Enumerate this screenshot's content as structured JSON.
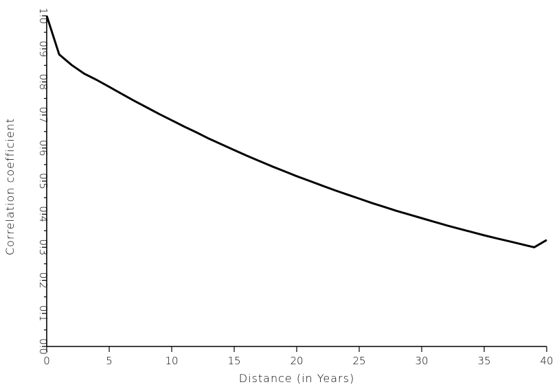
{
  "chart_data": {
    "type": "line",
    "title": "",
    "xlabel": "Distance (in Years)",
    "ylabel": "Correlation coefficient",
    "xlim": [
      0,
      40
    ],
    "ylim": [
      0.0,
      1.0
    ],
    "x_ticks": [
      0,
      5,
      10,
      15,
      20,
      25,
      30,
      35,
      40
    ],
    "x_tick_labels": [
      "0",
      "5",
      "10",
      "15",
      "20",
      "25",
      "30",
      "35",
      "40"
    ],
    "y_ticks": [
      0.0,
      0.1,
      0.2,
      0.3,
      0.4,
      0.5,
      0.6,
      0.7,
      0.8,
      0.9,
      1.0
    ],
    "y_tick_labels": [
      "0.0",
      "0.1",
      "0.2",
      "0.3",
      "0.4",
      "0.5",
      "0.6",
      "0.7",
      "0.8",
      "0.9",
      "1.0"
    ],
    "y_minor_ticks": [
      0.05,
      0.15,
      0.25,
      0.35,
      0.45,
      0.55,
      0.65,
      0.75,
      0.85,
      0.95
    ],
    "grid": false,
    "legend": "none",
    "line_color": "#000000",
    "series": [
      {
        "x": [
          0,
          1,
          2,
          3,
          4,
          5,
          6,
          7,
          8,
          9,
          10,
          11,
          12,
          13,
          14,
          15,
          16,
          17,
          18,
          19,
          20,
          21,
          22,
          23,
          24,
          25,
          26,
          27,
          28,
          29,
          30,
          31,
          32,
          33,
          34,
          35,
          36,
          37,
          38,
          39,
          40
        ],
        "values": [
          1.0,
          0.883,
          0.851,
          0.825,
          0.806,
          0.785,
          0.764,
          0.743,
          0.723,
          0.703,
          0.684,
          0.665,
          0.647,
          0.628,
          0.611,
          0.594,
          0.577,
          0.561,
          0.545,
          0.53,
          0.515,
          0.501,
          0.487,
          0.473,
          0.46,
          0.447,
          0.434,
          0.422,
          0.41,
          0.399,
          0.388,
          0.377,
          0.366,
          0.356,
          0.346,
          0.336,
          0.327,
          0.318,
          0.309,
          0.3,
          0.322
        ]
      }
    ]
  }
}
